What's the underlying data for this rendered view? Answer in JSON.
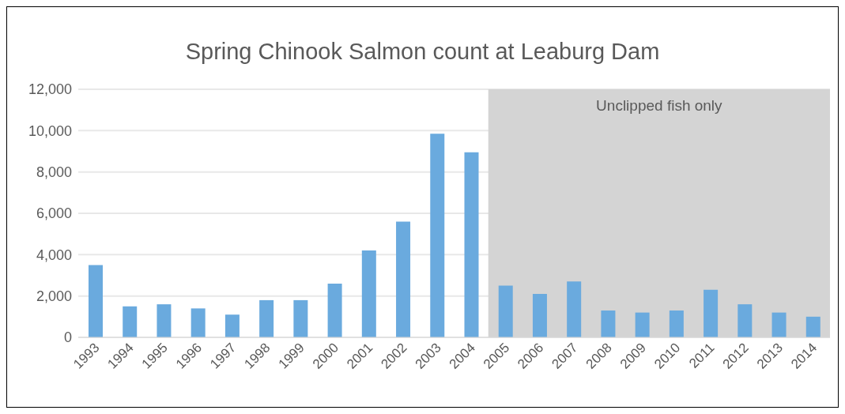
{
  "chart_data": {
    "type": "bar",
    "title": "Spring Chinook Salmon count at Leaburg Dam",
    "categories": [
      "1993",
      "1994",
      "1995",
      "1996",
      "1997",
      "1998",
      "1999",
      "2000",
      "2001",
      "2002",
      "2003",
      "2004",
      "2005",
      "2006",
      "2007",
      "2008",
      "2009",
      "2010",
      "2011",
      "2012",
      "2013",
      "2014"
    ],
    "values": [
      3500,
      1500,
      1600,
      1400,
      1100,
      1800,
      1800,
      2600,
      4200,
      5600,
      9850,
      8950,
      2500,
      2100,
      2700,
      1300,
      1200,
      1300,
      2300,
      1600,
      1200,
      1000
    ],
    "color": "#6aaade",
    "ylim": [
      0,
      12000
    ],
    "yticks": [
      {
        "value": 0,
        "label": "0"
      },
      {
        "value": 2000,
        "label": "2,000"
      },
      {
        "value": 4000,
        "label": "4,000"
      },
      {
        "value": 6000,
        "label": "6,000"
      },
      {
        "value": 8000,
        "label": "8,000"
      },
      {
        "value": 10000,
        "label": "10,000"
      },
      {
        "value": 12000,
        "label": "12,000"
      }
    ],
    "grid": "y",
    "bands": [
      {
        "axis": "x",
        "from": "2005",
        "to": "2014",
        "label": "Unclipped fish only",
        "color": "#d4d4d4"
      }
    ]
  }
}
